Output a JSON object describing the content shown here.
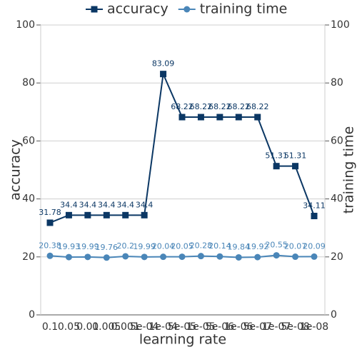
{
  "chart_data": {
    "type": "line",
    "xlabel": "learning rate",
    "ylabel": "accuracy",
    "y2label": "training time",
    "categories": [
      "0.1",
      "0.05",
      "0.01",
      "0.005",
      "0.001",
      "5e-04",
      "1e-04",
      "5e-05",
      "1e-05",
      "5e-06",
      "1e-06",
      "5e-07",
      "1e-07",
      "5e-08",
      "1e-08"
    ],
    "series": [
      {
        "name": "accuracy",
        "color": "#0b3764",
        "marker": "square",
        "axis": "y",
        "values": [
          31.78,
          34.4,
          34.4,
          34.4,
          34.4,
          34.4,
          83.09,
          68.22,
          68.22,
          68.22,
          68.22,
          68.22,
          51.31,
          51.31,
          34.11
        ]
      },
      {
        "name": "training time",
        "color": "#4a86b8",
        "marker": "circle",
        "axis": "y2",
        "values": [
          20.38,
          19.93,
          19.99,
          19.76,
          20.2,
          19.99,
          20.04,
          20.05,
          20.28,
          20.14,
          19.84,
          19.92,
          20.55,
          20.07,
          20.09
        ]
      }
    ],
    "ylim": [
      0,
      100
    ],
    "yticks": [
      0,
      20,
      40,
      60,
      80,
      100
    ],
    "y2lim": [
      0,
      100
    ],
    "y2ticks": [
      0,
      20,
      40,
      60,
      80,
      100
    ],
    "grid": true,
    "legend": "top"
  }
}
